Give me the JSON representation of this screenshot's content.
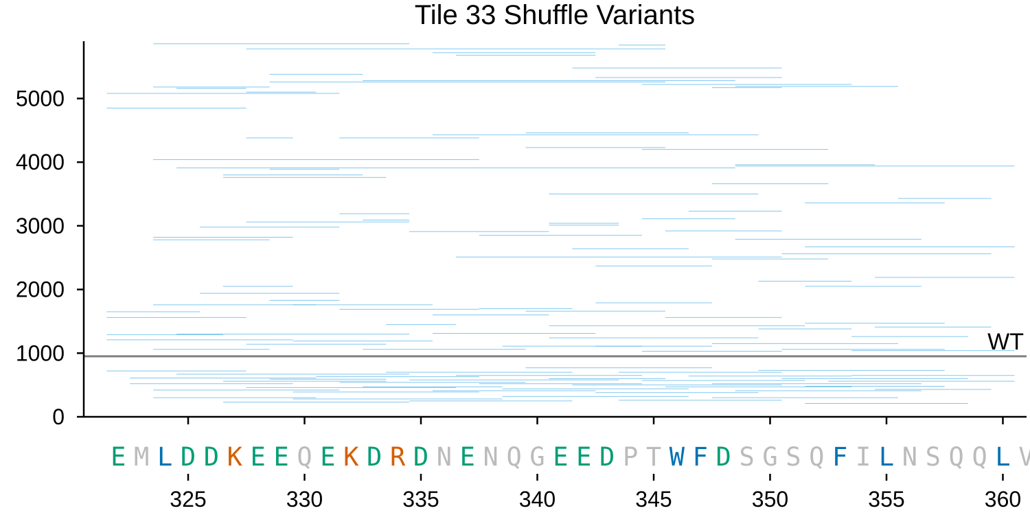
{
  "chart_data": {
    "type": "line",
    "title": "Tile 33 Shuffle Variants",
    "xlabel": "",
    "ylabel": "",
    "xlim": [
      321,
      361
    ],
    "ylim": [
      0,
      5900
    ],
    "x_ticks": [
      325,
      330,
      335,
      340,
      345,
      350,
      355,
      360
    ],
    "y_ticks": [
      0,
      1000,
      2000,
      3000,
      4000,
      5000
    ],
    "grid": false,
    "series_color": "#56B4E9",
    "reference_line": {
      "label": "WT",
      "value": 950,
      "color": "#808080"
    },
    "sequence": {
      "start": 322,
      "letters": [
        "E",
        "M",
        "L",
        "D",
        "D",
        "K",
        "E",
        "E",
        "Q",
        "E",
        "K",
        "D",
        "R",
        "D",
        "N",
        "E",
        "N",
        "Q",
        "G",
        "E",
        "E",
        "D",
        "P",
        "T",
        "W",
        "F",
        "D",
        "S",
        "G",
        "S",
        "Q",
        "F",
        "I",
        "L",
        "N",
        "S",
        "Q",
        "Q",
        "L",
        "V"
      ]
    },
    "residue_colors": {
      "acidic": "#009E73",
      "basic": "#D55E00",
      "hydrophobic": "#0072B2",
      "other": "#BBBBBB"
    },
    "segments": [
      [
        322,
        331,
        5080
      ],
      [
        322,
        327,
        4850
      ],
      [
        324,
        328,
        5180
      ],
      [
        325,
        327,
        5160
      ],
      [
        324,
        334,
        5860
      ],
      [
        328,
        345,
        5780
      ],
      [
        328,
        330,
        5100
      ],
      [
        329,
        332,
        5380
      ],
      [
        329,
        345,
        5260
      ],
      [
        333,
        348,
        5280
      ],
      [
        336,
        342,
        5720
      ],
      [
        337,
        342,
        5680
      ],
      [
        344,
        345,
        5840
      ],
      [
        342,
        350,
        5480
      ],
      [
        343,
        350,
        5330
      ],
      [
        345,
        353,
        5220
      ],
      [
        348,
        350,
        5170
      ],
      [
        349,
        355,
        5190
      ],
      [
        329,
        331,
        3890
      ],
      [
        324,
        337,
        4040
      ],
      [
        325,
        348,
        3910
      ],
      [
        327,
        332,
        3800
      ],
      [
        327,
        333,
        3760
      ],
      [
        328,
        329,
        4380
      ],
      [
        332,
        337,
        4380
      ],
      [
        340,
        346,
        4460
      ],
      [
        336,
        349,
        4430
      ],
      [
        340,
        345,
        4230
      ],
      [
        345,
        352,
        4200
      ],
      [
        349,
        354,
        3960
      ],
      [
        349,
        360,
        3940
      ],
      [
        341,
        349,
        3500
      ],
      [
        348,
        352,
        3660
      ],
      [
        352,
        357,
        3360
      ],
      [
        356,
        359,
        3430
      ],
      [
        324,
        329,
        2820
      ],
      [
        324,
        328,
        2780
      ],
      [
        326,
        331,
        2980
      ],
      [
        328,
        334,
        3060
      ],
      [
        332,
        334,
        3190
      ],
      [
        333,
        334,
        3090
      ],
      [
        335,
        340,
        2910
      ],
      [
        338,
        344,
        2850
      ],
      [
        341,
        343,
        3040
      ],
      [
        341,
        343,
        3010
      ],
      [
        342,
        346,
        2640
      ],
      [
        345,
        348,
        3110
      ],
      [
        347,
        350,
        3230
      ],
      [
        346,
        350,
        2920
      ],
      [
        349,
        356,
        2790
      ],
      [
        351,
        359,
        2560
      ],
      [
        352,
        360,
        2670
      ],
      [
        355,
        360,
        2190
      ],
      [
        337,
        350,
        2510
      ],
      [
        343,
        347,
        2370
      ],
      [
        348,
        352,
        2480
      ],
      [
        350,
        353,
        2130
      ],
      [
        352,
        356,
        2050
      ],
      [
        322,
        325,
        1650
      ],
      [
        322,
        327,
        1560
      ],
      [
        324,
        330,
        1760
      ],
      [
        326,
        331,
        1940
      ],
      [
        327,
        329,
        2050
      ],
      [
        329,
        331,
        1830
      ],
      [
        330,
        335,
        1760
      ],
      [
        332,
        337,
        1690
      ],
      [
        334,
        336,
        1450
      ],
      [
        336,
        340,
        1600
      ],
      [
        338,
        341,
        1700
      ],
      [
        340,
        345,
        1660
      ],
      [
        341,
        346,
        1430
      ],
      [
        343,
        347,
        1790
      ],
      [
        346,
        350,
        1560
      ],
      [
        347,
        351,
        1430
      ],
      [
        350,
        353,
        1380
      ],
      [
        352,
        357,
        1470
      ],
      [
        354,
        358,
        1260
      ],
      [
        355,
        359,
        1410
      ],
      [
        322,
        326,
        1290
      ],
      [
        322,
        329,
        1210
      ],
      [
        324,
        328,
        1060
      ],
      [
        325,
        334,
        1300
      ],
      [
        328,
        333,
        1140
      ],
      [
        330,
        335,
        1190
      ],
      [
        333,
        339,
        1060
      ],
      [
        336,
        342,
        1310
      ],
      [
        339,
        344,
        1110
      ],
      [
        341,
        349,
        1240
      ],
      [
        343,
        347,
        1110
      ],
      [
        345,
        350,
        1030
      ],
      [
        348,
        355,
        1150
      ],
      [
        351,
        357,
        1060
      ],
      [
        354,
        360,
        1040
      ],
      [
        322,
        327,
        720
      ],
      [
        323,
        330,
        610
      ],
      [
        323,
        329,
        520
      ],
      [
        324,
        331,
        420
      ],
      [
        325,
        334,
        670
      ],
      [
        327,
        333,
        560
      ],
      [
        328,
        336,
        460
      ],
      [
        329,
        333,
        590
      ],
      [
        330,
        337,
        390
      ],
      [
        331,
        337,
        630
      ],
      [
        332,
        339,
        540
      ],
      [
        333,
        338,
        470
      ],
      [
        334,
        341,
        700
      ],
      [
        335,
        343,
        580
      ],
      [
        336,
        342,
        410
      ],
      [
        337,
        344,
        650
      ],
      [
        338,
        344,
        520
      ],
      [
        339,
        346,
        440
      ],
      [
        340,
        347,
        770
      ],
      [
        341,
        345,
        600
      ],
      [
        342,
        350,
        500
      ],
      [
        343,
        349,
        380
      ],
      [
        344,
        350,
        700
      ],
      [
        345,
        351,
        570
      ],
      [
        346,
        353,
        470
      ],
      [
        347,
        353,
        640
      ],
      [
        348,
        356,
        520
      ],
      [
        349,
        356,
        410
      ],
      [
        350,
        357,
        730
      ],
      [
        351,
        358,
        600
      ],
      [
        352,
        357,
        480
      ],
      [
        353,
        360,
        560
      ],
      [
        354,
        360,
        650
      ],
      [
        355,
        359,
        430
      ],
      [
        324,
        330,
        300
      ],
      [
        327,
        334,
        230
      ],
      [
        330,
        338,
        280
      ],
      [
        335,
        341,
        250
      ],
      [
        339,
        346,
        320
      ],
      [
        344,
        350,
        260
      ],
      [
        348,
        355,
        300
      ],
      [
        352,
        358,
        210
      ]
    ]
  }
}
